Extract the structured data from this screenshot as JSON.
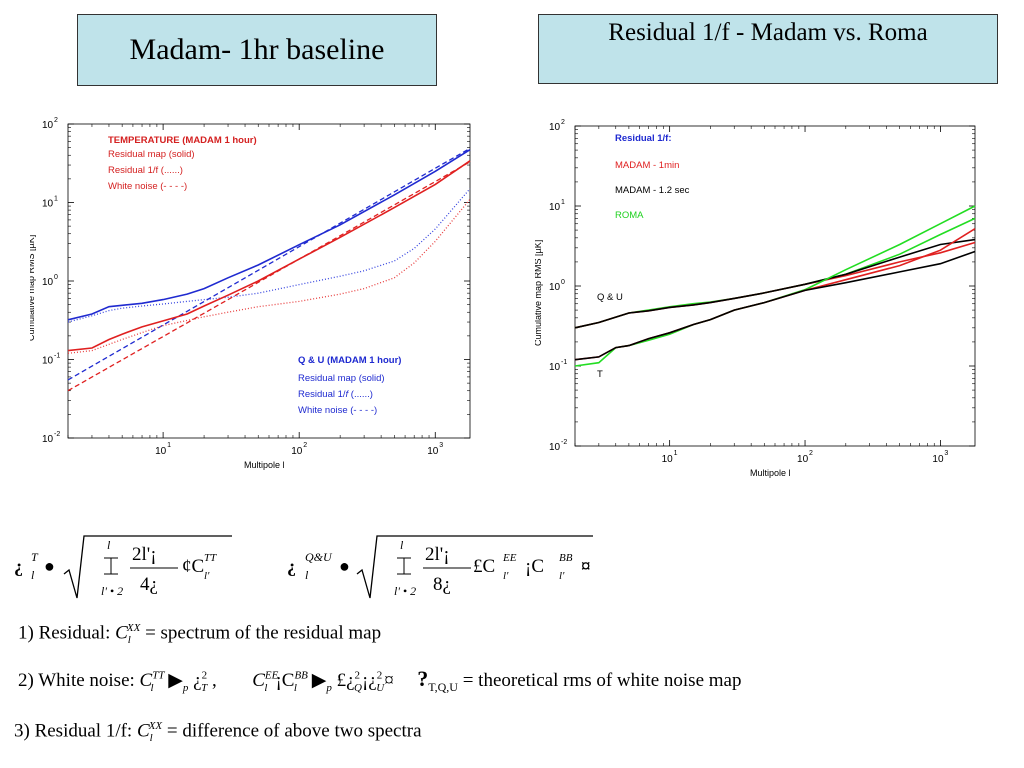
{
  "titles": {
    "left": "Madam- 1hr baseline",
    "right": "Residual 1/f - Madam vs. Roma"
  },
  "chart_data": [
    {
      "type": "line",
      "xlabel": "Multipole l",
      "ylabel": "Cumulative map RMS [µK]",
      "xscale": "log",
      "yscale": "log",
      "xlim": [
        2,
        1800
      ],
      "ylim": [
        0.01,
        100
      ],
      "x_ticks": [
        "10",
        "10",
        "10"
      ],
      "x_tick_exp": [
        "1",
        "2",
        "3"
      ],
      "y_ticks": [
        "10",
        "10",
        "10",
        "10",
        "10"
      ],
      "y_tick_exp": [
        "-2",
        "-1",
        "0",
        "1",
        "2"
      ],
      "legend_temperature": {
        "title": "TEMPERATURE (MADAM 1 hour)",
        "items": [
          "Residual map (solid)",
          "Residual 1/f (......)",
          "White noise (- - - -)"
        ]
      },
      "legend_qu": {
        "title": "Q & U (MADAM 1 hour)",
        "items": [
          "Residual map (solid)",
          "Residual 1/",
          "f",
          " (......)",
          "White noise (- - - -)"
        ]
      },
      "series": [
        {
          "group": "Q&U",
          "kind": "residual map",
          "color": "#1f2ad0",
          "style": "solid",
          "x": [
            2,
            3,
            4,
            5,
            7,
            10,
            15,
            20,
            30,
            50,
            100,
            200,
            500,
            1000,
            1800
          ],
          "y": [
            0.32,
            0.38,
            0.47,
            0.49,
            0.52,
            0.58,
            0.68,
            0.8,
            1.1,
            1.6,
            2.9,
            5.2,
            12.5,
            25,
            47
          ]
        },
        {
          "group": "Q&U",
          "kind": "residual 1/f",
          "color": "#3a48e0",
          "style": "dotted",
          "x": [
            2,
            3,
            4,
            5,
            7,
            10,
            15,
            20,
            30,
            50,
            100,
            200,
            300,
            500,
            700,
            1000,
            1800
          ],
          "y": [
            0.3,
            0.36,
            0.42,
            0.45,
            0.48,
            0.51,
            0.55,
            0.58,
            0.62,
            0.7,
            0.9,
            1.15,
            1.35,
            1.8,
            2.6,
            4.6,
            15
          ]
        },
        {
          "group": "Q&U",
          "kind": "white noise",
          "color": "#1f2ad0",
          "style": "dashed",
          "x": [
            2,
            1800
          ],
          "y": [
            0.055,
            49
          ]
        },
        {
          "group": "T",
          "kind": "residual map",
          "color": "#e02020",
          "style": "solid",
          "x": [
            2,
            3,
            4,
            5,
            7,
            10,
            15,
            20,
            30,
            50,
            100,
            200,
            500,
            1000,
            1800
          ],
          "y": [
            0.13,
            0.14,
            0.18,
            0.21,
            0.26,
            0.31,
            0.38,
            0.48,
            0.66,
            1.0,
            1.9,
            3.6,
            8.6,
            17,
            34
          ]
        },
        {
          "group": "T",
          "kind": "residual 1/f",
          "color": "#e84040",
          "style": "dotted",
          "x": [
            2,
            3,
            5,
            7,
            10,
            20,
            30,
            50,
            100,
            200,
            300,
            500,
            700,
            1000,
            1800
          ],
          "y": [
            0.12,
            0.13,
            0.18,
            0.22,
            0.27,
            0.35,
            0.4,
            0.47,
            0.55,
            0.68,
            0.8,
            1.1,
            1.7,
            3.2,
            11
          ]
        },
        {
          "group": "T",
          "kind": "white noise",
          "color": "#e02020",
          "style": "dashed",
          "x": [
            2,
            1800
          ],
          "y": [
            0.04,
            33
          ]
        }
      ]
    },
    {
      "type": "line",
      "xlabel": "Multipole l",
      "ylabel": "Cumulative map RMS [µK]",
      "xscale": "log",
      "yscale": "log",
      "xlim": [
        2,
        1800
      ],
      "ylim": [
        0.01,
        100
      ],
      "x_ticks": [
        "10",
        "10",
        "10"
      ],
      "x_tick_exp": [
        "1",
        "2",
        "3"
      ],
      "y_ticks": [
        "10",
        "10",
        "10",
        "10",
        "10"
      ],
      "y_tick_exp": [
        "-2",
        "-1",
        "0",
        "1",
        "2"
      ],
      "legend": {
        "title": "Residual 1/f:",
        "items": [
          {
            "label": "MADAM - 1min",
            "color": "#e02020"
          },
          {
            "label": "MADAM - 1.2 sec",
            "color": "#000000"
          },
          {
            "label": "ROMA",
            "color": "#22dd22"
          }
        ]
      },
      "annotations": [
        "Q & U",
        "T"
      ],
      "series": [
        {
          "name": "ROMA",
          "group": "Q&U",
          "color": "#22dd22",
          "x": [
            2,
            3,
            5,
            7,
            10,
            15,
            20,
            30,
            50,
            100,
            200,
            500,
            1000,
            1800
          ],
          "y": [
            0.3,
            0.35,
            0.46,
            0.5,
            0.55,
            0.6,
            0.63,
            0.7,
            0.82,
            1.05,
            1.4,
            2.5,
            4.4,
            7
          ]
        },
        {
          "name": "MADAM - 1min",
          "group": "Q&U",
          "color": "#e02020",
          "x": [
            2,
            3,
            5,
            7,
            10,
            15,
            20,
            30,
            50,
            100,
            200,
            500,
            1000,
            1800
          ],
          "y": [
            0.3,
            0.35,
            0.46,
            0.49,
            0.54,
            0.58,
            0.62,
            0.7,
            0.82,
            1.05,
            1.35,
            2.0,
            2.6,
            3.5
          ]
        },
        {
          "name": "MADAM - 1.2 sec",
          "group": "Q&U",
          "color": "#000000",
          "x": [
            2,
            3,
            5,
            7,
            10,
            15,
            20,
            30,
            50,
            100,
            200,
            500,
            1000,
            1800
          ],
          "y": [
            0.3,
            0.35,
            0.46,
            0.49,
            0.54,
            0.58,
            0.62,
            0.7,
            0.82,
            1.05,
            1.4,
            2.3,
            3.3,
            3.8
          ]
        },
        {
          "name": "ROMA",
          "group": "T",
          "color": "#22dd22",
          "x": [
            2,
            3,
            4,
            5,
            7,
            10,
            15,
            20,
            30,
            50,
            100,
            200,
            500,
            1000,
            1800
          ],
          "y": [
            0.1,
            0.11,
            0.17,
            0.18,
            0.21,
            0.25,
            0.33,
            0.38,
            0.5,
            0.62,
            0.9,
            1.6,
            3.3,
            6.0,
            10
          ]
        },
        {
          "name": "MADAM - 1min",
          "group": "T",
          "color": "#e02020",
          "x": [
            2,
            3,
            4,
            5,
            7,
            10,
            15,
            20,
            30,
            50,
            100,
            200,
            500,
            1000,
            1800
          ],
          "y": [
            0.12,
            0.13,
            0.17,
            0.18,
            0.22,
            0.26,
            0.33,
            0.38,
            0.5,
            0.62,
            0.88,
            1.2,
            1.8,
            2.8,
            5.2
          ]
        },
        {
          "name": "MADAM - 1.2 sec",
          "group": "T",
          "color": "#000000",
          "x": [
            2,
            3,
            4,
            5,
            7,
            10,
            15,
            20,
            30,
            50,
            100,
            200,
            500,
            1000,
            1800
          ],
          "y": [
            0.12,
            0.13,
            0.17,
            0.18,
            0.22,
            0.26,
            0.33,
            0.38,
            0.5,
            0.62,
            0.88,
            1.1,
            1.5,
            1.9,
            2.7
          ]
        }
      ]
    }
  ],
  "formulas": {
    "f1": {
      "lhs_sym": "¿",
      "lhs_sup": "T",
      "lhs_sub": "l",
      "eq": "●",
      "sum_top": "l",
      "sum_bot": "l' • 2",
      "num": "2l'¡",
      "den": "4¿",
      "rhs": "¢C",
      "rhs_sup": "TT",
      "rhs_sub": "l'"
    },
    "f2": {
      "lhs_sym": "¿",
      "lhs_sup": "Q&U",
      "lhs_sub": "l",
      "eq": "●",
      "sum_top": "l",
      "sum_bot": "l' • 2",
      "num": "2l'¡",
      "den": "8¿",
      "rhs": "£C",
      "rhs_sup": "EE",
      "rhs_sub": "l'",
      "mid": "¡C",
      "rhs2_sup": "BB",
      "rhs2_sub": "l'",
      "close": "¤"
    }
  },
  "notes": {
    "n1_prefix": "1) Residual: ",
    "n1_C": "C",
    "n1_sub": "l",
    "n1_sup": "XX",
    "n1_text": " = spectrum of the residual map",
    "n2_prefix": "2) White noise: ",
    "n2_C1": "C",
    "n2_sup1": "TT",
    "n2_sub1": "l",
    "n2_op1": " ▶",
    "n2_p": "p",
    "n2_sig1": " ¿",
    "n2_sig1_sup": "2",
    "n2_sig1_sub": "T",
    "n2_comma": " ,",
    "n2_C2": "C",
    "n2_sup2": "EE",
    "n2_sub2": "l",
    "n2_mid": "¡C",
    "n2_sup3": "BB",
    "n2_sub3": "l",
    "n2_op2": " ▶",
    "n2_p2": "p",
    "n2_open": " £¿",
    "n2_q_sup": "2",
    "n2_q_sub": "Q",
    "n2_mid2": "¡¿",
    "n2_u_sup": "2",
    "n2_u_sub": "U",
    "n2_close": "¤",
    "n2_q": "?",
    "n2_tqu": "T,Q,U",
    "n2_text": " = theoretical rms of white noise map",
    "n3_prefix": "3) Residual 1/f: ",
    "n3_C": "C",
    "n3_sub": "l",
    "n3_sup": "XX",
    "n3_text": " = difference of above two spectra"
  }
}
